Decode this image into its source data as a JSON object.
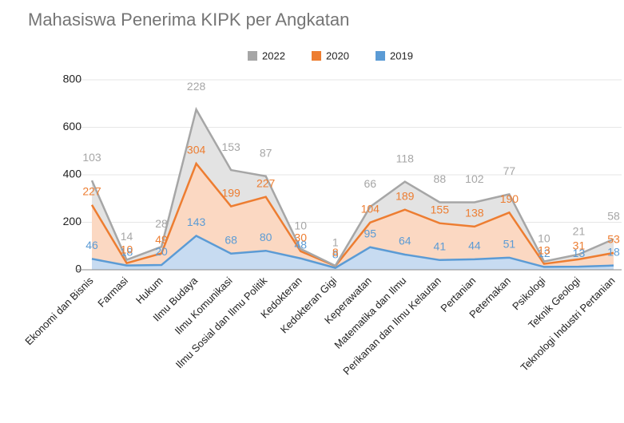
{
  "chart_data": {
    "type": "stacked_area",
    "title": "Mahasiswa Penerima KIPK per Angkatan",
    "categories": [
      "Ekonomi dan Bisnis",
      "Farmasi",
      "Hukum",
      "Ilmu Budaya",
      "Ilmu Komunikasi",
      "Ilmu Sosial dan Ilmu Politik",
      "Kedokteran",
      "Kedokteran Gigi",
      "Keperawatan",
      "Matematika dan Ilmu",
      "Perikanan dan Ilmu Kelautan",
      "Pertanian",
      "Peternakan",
      "Psikologi",
      "Teknik Geologi",
      "Teknologi Industri Pertanian"
    ],
    "series": [
      {
        "name": "2022",
        "color": "#a6a6a6",
        "values": [
          103,
          14,
          28,
          228,
          153,
          87,
          10,
          1,
          66,
          118,
          88,
          102,
          77,
          10,
          21,
          58
        ]
      },
      {
        "name": "2020",
        "color": "#ed7d31",
        "values": [
          227,
          10,
          49,
          304,
          199,
          227,
          30,
          8,
          104,
          189,
          155,
          138,
          190,
          13,
          31,
          53
        ]
      },
      {
        "name": "2019",
        "color": "#5b9bd5",
        "values": [
          46,
          18,
          20,
          143,
          68,
          80,
          48,
          8,
          95,
          64,
          41,
          44,
          51,
          12,
          13,
          18
        ]
      }
    ],
    "ylim": [
      0,
      800
    ],
    "yticks": [
      0,
      200,
      400,
      600,
      800
    ],
    "grid": true,
    "legend": "top"
  }
}
